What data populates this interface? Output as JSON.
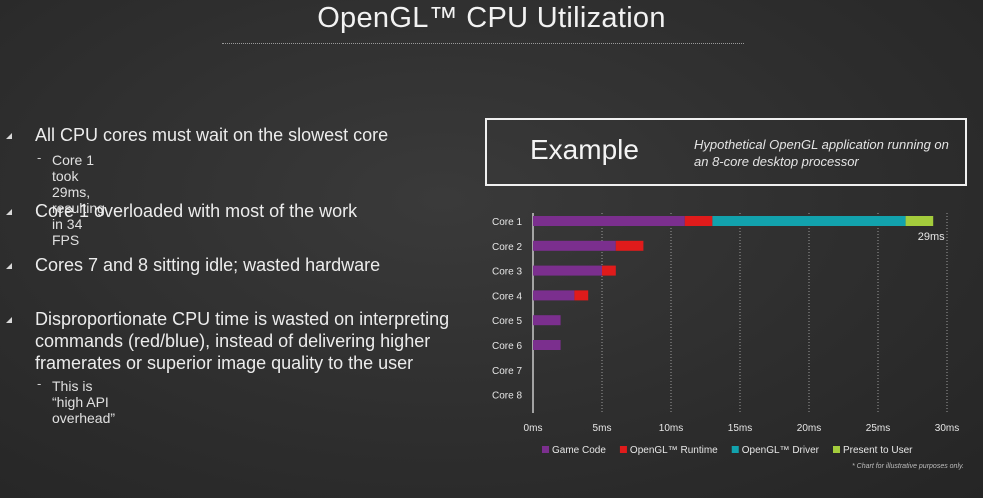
{
  "title": "OpenGL™ CPU Utilization",
  "bullets": [
    {
      "text": "All CPU cores must wait on the slowest core",
      "sub": "Core 1 took 29ms, resulting in 34 FPS"
    },
    {
      "text": "Core 1 overloaded with most of the work",
      "sub": ""
    },
    {
      "text": "Cores 7 and 8 sitting idle; wasted hardware",
      "sub": ""
    },
    {
      "text": "Disproportionate CPU time is wasted on interpreting commands (red/blue), instead of delivering higher framerates or superior image quality to the user",
      "sub": "This is “high API overhead”"
    }
  ],
  "example": {
    "label": "Example",
    "description": "Hypothetical OpenGL application running on an 8-core desktop processor"
  },
  "footnote": "* Chart for illustrative purposes only.",
  "colors": {
    "game_code": "#7b2f8e",
    "runtime": "#e01b1b",
    "driver": "#12a2ad",
    "present": "#a4cc3c"
  },
  "chart_data": {
    "type": "bar",
    "orientation": "horizontal",
    "stacked": true,
    "categories": [
      "Core 1",
      "Core 2",
      "Core 3",
      "Core 4",
      "Core 5",
      "Core 6",
      "Core 7",
      "Core 8"
    ],
    "series": [
      {
        "name": "Game Code",
        "color": "#7b2f8e",
        "values": [
          11,
          6,
          5,
          3,
          2,
          2,
          0,
          0
        ]
      },
      {
        "name": "OpenGL™ Runtime",
        "color": "#e01b1b",
        "values": [
          2,
          2,
          1,
          1,
          0,
          0,
          0,
          0
        ]
      },
      {
        "name": "OpenGL™ Driver",
        "color": "#12a2ad",
        "values": [
          14,
          0,
          0,
          0,
          0,
          0,
          0,
          0
        ]
      },
      {
        "name": "Present to User",
        "color": "#a4cc3c",
        "values": [
          2,
          0,
          0,
          0,
          0,
          0,
          0,
          0
        ]
      }
    ],
    "xlim": [
      0,
      30
    ],
    "xticks": [
      0,
      5,
      10,
      15,
      20,
      25,
      30
    ],
    "xtick_labels": [
      "0ms",
      "5ms",
      "10ms",
      "15ms",
      "20ms",
      "25ms",
      "30ms"
    ],
    "annotation": "29ms",
    "grid": "vertical dotted",
    "legend_position": "bottom"
  }
}
